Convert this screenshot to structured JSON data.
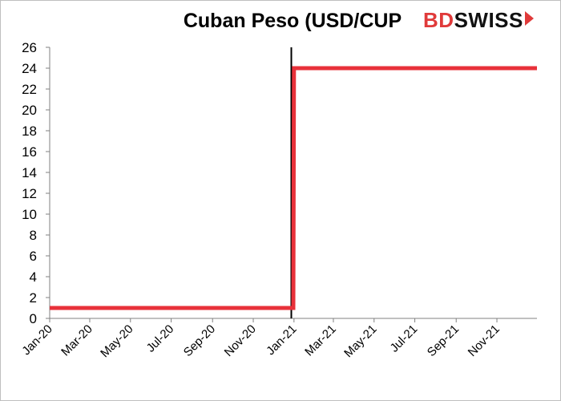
{
  "brand": {
    "bd": "BD",
    "swiss": "SWISS"
  },
  "colors": {
    "series": "#e8313a",
    "event_line": "#000000",
    "axis": "#808080",
    "brand_red": "#e03a3a"
  },
  "chart_data": {
    "type": "line",
    "title": "Cuban Peso (USD/CUP",
    "xlabel": "",
    "ylabel": "",
    "ylim": [
      0,
      26
    ],
    "yticks": [
      0,
      2,
      4,
      6,
      8,
      10,
      12,
      14,
      16,
      18,
      20,
      22,
      24,
      26
    ],
    "xlim": [
      "2020-01-01",
      "2021-12-31"
    ],
    "xticks": [
      {
        "date": "2020-01-01",
        "label": "Jan-20"
      },
      {
        "date": "2020-03-01",
        "label": "Mar-20"
      },
      {
        "date": "2020-05-01",
        "label": "May-20"
      },
      {
        "date": "2020-07-01",
        "label": "Jul-20"
      },
      {
        "date": "2020-09-01",
        "label": "Sep-20"
      },
      {
        "date": "2020-11-01",
        "label": "Nov-20"
      },
      {
        "date": "2021-01-01",
        "label": "Jan-21"
      },
      {
        "date": "2021-03-01",
        "label": "Mar-21"
      },
      {
        "date": "2021-05-01",
        "label": "May-21"
      },
      {
        "date": "2021-07-01",
        "label": "Jul-21"
      },
      {
        "date": "2021-09-01",
        "label": "Sep-21"
      },
      {
        "date": "2021-11-01",
        "label": "Nov-21"
      }
    ],
    "grid": false,
    "legend": "none",
    "series": [
      {
        "x": [
          "2020-01-01",
          "2020-12-31",
          "2021-01-01",
          "2021-12-31"
        ],
        "values": [
          1,
          1,
          24,
          24
        ]
      }
    ],
    "vertical_line": {
      "x": "2020-12-28"
    }
  }
}
